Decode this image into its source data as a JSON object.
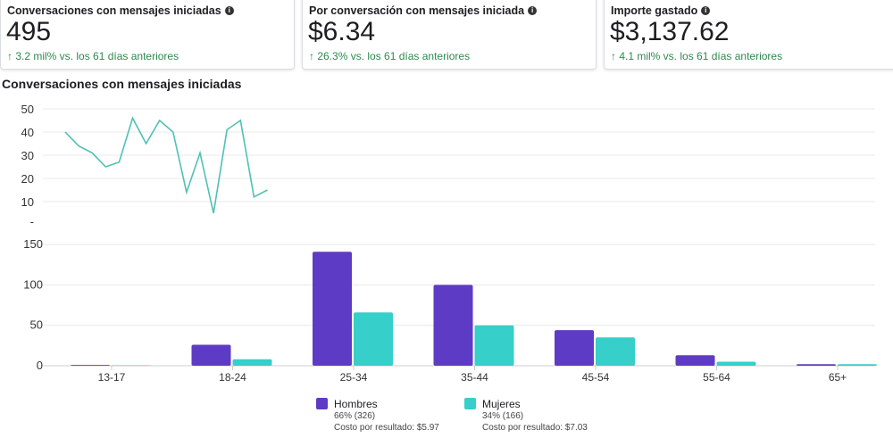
{
  "cards": [
    {
      "title": "Conversaciones con mensajes iniciadas",
      "value": "495",
      "delta": "↑ 3.2 mil% vs. los 61 días anteriores"
    },
    {
      "title": "Por conversación con mensajes iniciada",
      "value": "$6.34",
      "delta": "↑ 26.3% vs. los 61 días anteriores"
    },
    {
      "title": "Importe gastado",
      "value": "$3,137.62",
      "delta": "↑ 4.1 mil% vs. los 61 días anteriores"
    }
  ],
  "section_title": "Conversaciones con mensajes iniciadas",
  "colors": {
    "men": "#5e3bc4",
    "women": "#36cfc9",
    "line": "#4fc1b5",
    "positive": "#2d8a4e"
  },
  "chart_data": [
    {
      "type": "line",
      "y": [
        40,
        34,
        31,
        25,
        27,
        46,
        35,
        45,
        40,
        14,
        31,
        5,
        41,
        45,
        12,
        15
      ],
      "ylim": [
        0,
        50
      ],
      "yticks": [
        "50",
        "40",
        "30",
        "20",
        "10",
        "-"
      ],
      "grid": true
    },
    {
      "type": "bar",
      "categories": [
        "13-17",
        "18-24",
        "25-34",
        "35-44",
        "45-54",
        "55-64",
        "65+"
      ],
      "series": [
        {
          "name": "Hombres",
          "values": [
            1,
            26,
            141,
            100,
            44,
            13,
            2
          ]
        },
        {
          "name": "Mujeres",
          "values": [
            0.5,
            8,
            66,
            50,
            35,
            5,
            2
          ]
        }
      ],
      "ylim": [
        0,
        150
      ],
      "yticks": [
        "150",
        "100",
        "50",
        "0"
      ],
      "grid": true,
      "legend": "bottom"
    }
  ],
  "legend": [
    {
      "name": "Hombres",
      "share": "66% (326)",
      "cost": "Costo por resultado: $5.97"
    },
    {
      "name": "Mujeres",
      "share": "34% (166)",
      "cost": "Costo por resultado: $7.03"
    }
  ]
}
